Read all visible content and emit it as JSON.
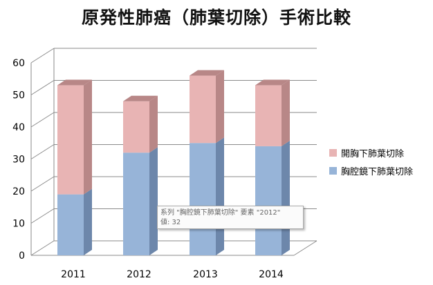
{
  "title": "原発性肺癌（肺葉切除）手術比較",
  "colors": {
    "series1": "#e8b4b4",
    "series2": "#97b4d8",
    "series1_dark": "#b88787",
    "series2_dark": "#6d87ab",
    "grid": "#8a8a8a"
  },
  "chart_data": {
    "type": "bar",
    "stacked": true,
    "categories": [
      "2011",
      "2012",
      "2013",
      "2014"
    ],
    "series": [
      {
        "name": "胸腔鏡下肺葉切除",
        "values": [
          19,
          32,
          35,
          34
        ]
      },
      {
        "name": "開胸下肺葉切除",
        "values": [
          34,
          16,
          21,
          19
        ]
      }
    ],
    "ylim": [
      0,
      60
    ],
    "yticks": [
      "0",
      "10",
      "20",
      "30",
      "40",
      "50",
      "60"
    ],
    "grid": true,
    "legend_position": "right"
  },
  "legend": [
    {
      "label": "開胸下肺葉切除",
      "color": "#e8b4b4"
    },
    {
      "label": "胸腔鏡下肺葉切除",
      "color": "#97b4d8"
    }
  ],
  "tooltip": {
    "line1": "系列 \"胸腔鏡下肺葉切除\" 要素 \"2012\"",
    "line2": "値: 32"
  }
}
